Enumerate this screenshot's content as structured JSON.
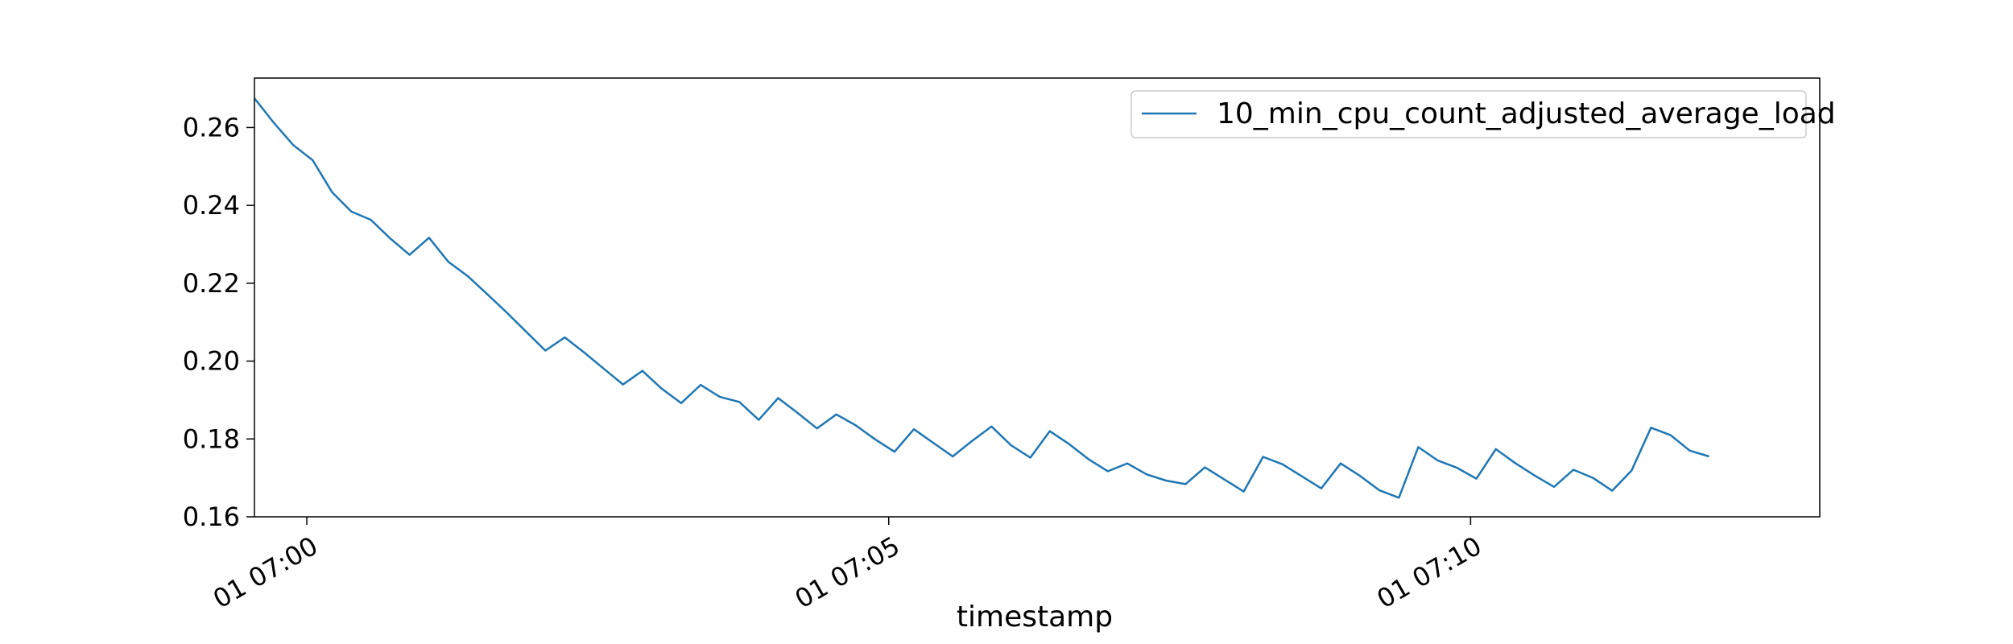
{
  "chart_data": {
    "type": "line",
    "title": "",
    "xlabel": "timestamp",
    "ylabel": "",
    "x_start": "2024-01-01T06:59:33",
    "x_step_seconds": 10,
    "xlim": [
      "2024-01-01T06:59:33",
      "2024-01-01T07:13:00"
    ],
    "ylim": [
      0.16,
      0.2727
    ],
    "xticks": [
      {
        "value": "2024-01-01T07:00:00",
        "label": "01 07:00"
      },
      {
        "value": "2024-01-01T07:05:00",
        "label": "01 07:05"
      },
      {
        "value": "2024-01-01T07:10:00",
        "label": "01 07:10"
      }
    ],
    "yticks": [
      {
        "value": 0.16,
        "label": "0.16"
      },
      {
        "value": 0.18,
        "label": "0.18"
      },
      {
        "value": 0.2,
        "label": "0.20"
      },
      {
        "value": 0.22,
        "label": "0.22"
      },
      {
        "value": 0.24,
        "label": "0.24"
      },
      {
        "value": 0.26,
        "label": "0.26"
      }
    ],
    "grid": false,
    "legend_position": "top-right",
    "series": [
      {
        "name": "10_min_cpu_count_adjusted_average_load",
        "color": "#1f77b4",
        "values": [
          0.2675,
          0.2612,
          0.2555,
          0.2516,
          0.2434,
          0.2384,
          0.2363,
          0.2315,
          0.2273,
          0.2317,
          0.2255,
          0.2218,
          0.2172,
          0.2125,
          0.2076,
          0.2027,
          0.2061,
          0.2022,
          0.1981,
          0.194,
          0.1975,
          0.1929,
          0.1892,
          0.1939,
          0.1908,
          0.1895,
          0.1849,
          0.1905,
          0.1867,
          0.1827,
          0.1863,
          0.1835,
          0.1799,
          0.1767,
          0.1825,
          0.179,
          0.1755,
          0.1795,
          0.1832,
          0.1784,
          0.1752,
          0.182,
          0.1787,
          0.1748,
          0.1717,
          0.1737,
          0.1709,
          0.1693,
          0.1684,
          0.1727,
          0.1696,
          0.1665,
          0.1754,
          0.1735,
          0.1704,
          0.1673,
          0.1737,
          0.1705,
          0.1668,
          0.1649,
          0.1779,
          0.1745,
          0.1726,
          0.1698,
          0.1774,
          0.1738,
          0.1706,
          0.1677,
          0.1721,
          0.17,
          0.1667,
          0.1719,
          0.1829,
          0.181,
          0.177,
          0.1755
        ]
      }
    ]
  }
}
